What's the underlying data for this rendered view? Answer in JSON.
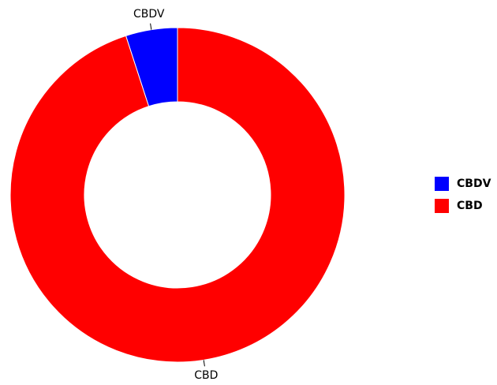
{
  "chart_data": {
    "type": "donut",
    "categories": [
      "CBDV",
      "CBD"
    ],
    "values": [
      5,
      95
    ],
    "colors": [
      "#0000ff",
      "#ff0000"
    ],
    "legend": "right"
  }
}
